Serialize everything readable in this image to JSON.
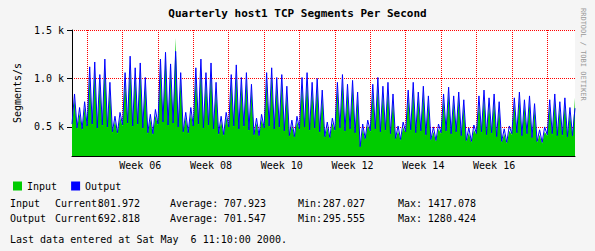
{
  "chart_data": {
    "type": "line",
    "title": "Quarterly host1 TCP Segments Per Second",
    "y_label": "Segments/s",
    "credit": "RRDTOOL / TOBI OETIKER",
    "categories": [
      null,
      null,
      null,
      null,
      null,
      null,
      null,
      null,
      null,
      null,
      null,
      null,
      null,
      null,
      null,
      null,
      null,
      null,
      null,
      null,
      null,
      null,
      null,
      null,
      null,
      null,
      null,
      "Week 06",
      null,
      null,
      null,
      null,
      null,
      null,
      null,
      null,
      null,
      null,
      null,
      null,
      null,
      null,
      null,
      null,
      null,
      null,
      null,
      null,
      null,
      null,
      null,
      null,
      null,
      null,
      null,
      "Week 08",
      null,
      null,
      null,
      null,
      null,
      null,
      null,
      null,
      null,
      null,
      null,
      null,
      null,
      null,
      null,
      null,
      null,
      null,
      null,
      null,
      null,
      null,
      null,
      null,
      null,
      null,
      null,
      "Week 10",
      null,
      null,
      null,
      null,
      null,
      null,
      null,
      null,
      null,
      null,
      null,
      null,
      null,
      null,
      null,
      null,
      null,
      null,
      null,
      null,
      null,
      null,
      null,
      null,
      null,
      null,
      null,
      "Week 12",
      null,
      null,
      null,
      null,
      null,
      null,
      null,
      null,
      null,
      null,
      null,
      null,
      null,
      null,
      null,
      null,
      null,
      null,
      null,
      null,
      null,
      null,
      null,
      null,
      null,
      null,
      null,
      "Week 14",
      null,
      null,
      null,
      null,
      null,
      null,
      null,
      null,
      null,
      null,
      null,
      null,
      null,
      null,
      null,
      null,
      null,
      null,
      null,
      null,
      null,
      null,
      null,
      null,
      null,
      null,
      null,
      "Week 16",
      null,
      null,
      null,
      null,
      null,
      null,
      null,
      null,
      null,
      null,
      null,
      null,
      null,
      null,
      null,
      null,
      null,
      null,
      null,
      null,
      null,
      null,
      null,
      null,
      null,
      null,
      null,
      null,
      null,
      null,
      null,
      null
    ],
    "series": [
      {
        "name": "Input",
        "type": "area",
        "color": "#00cc00",
        "values": [
          520,
          780,
          480,
          640,
          470,
          700,
          500,
          1050,
          520,
          1100,
          480,
          980,
          510,
          1150,
          490,
          900,
          440,
          560,
          430,
          600,
          510,
          1000,
          530,
          1180,
          500,
          1050,
          520,
          1100,
          480,
          950,
          430,
          580,
          420,
          620,
          520,
          1150,
          540,
          1250,
          510,
          1100,
          530,
          1417,
          490,
          1000,
          440,
          600,
          430,
          640,
          500,
          1050,
          520,
          1150,
          480,
          1000,
          510,
          1100,
          470,
          900,
          420,
          560,
          410,
          600,
          490,
          980,
          500,
          1080,
          470,
          950,
          500,
          1000,
          460,
          880,
          410,
          540,
          400,
          580,
          480,
          1000,
          500,
          1050,
          470,
          950,
          490,
          980,
          450,
          860,
          400,
          520,
          390,
          560,
          470,
          950,
          490,
          1000,
          460,
          900,
          480,
          940,
          440,
          820,
          390,
          500,
          380,
          540,
          460,
          900,
          480,
          980,
          450,
          880,
          470,
          920,
          430,
          800,
          287,
          480,
          370,
          520,
          450,
          880,
          470,
          950,
          440,
          860,
          460,
          900,
          420,
          780,
          370,
          460,
          360,
          500,
          440,
          820,
          460,
          900,
          430,
          800,
          450,
          860,
          410,
          760,
          360,
          450,
          350,
          480,
          430,
          780,
          450,
          850,
          420,
          760,
          440,
          800,
          400,
          720,
          350,
          440,
          340,
          470,
          420,
          760,
          440,
          820,
          410,
          740,
          430,
          780,
          390,
          700,
          340,
          430,
          330,
          460,
          420,
          740,
          430,
          800,
          400,
          720,
          420,
          760,
          380,
          680,
          340,
          420,
          330,
          450,
          410,
          720,
          420,
          780,
          400,
          700,
          410,
          740,
          390,
          650,
          400,
          802
        ]
      },
      {
        "name": "Output",
        "type": "line",
        "color": "#0000ff",
        "values": [
          530,
          840,
          490,
          700,
          480,
          760,
          510,
          1120,
          530,
          1170,
          490,
          1040,
          520,
          1200,
          500,
          960,
          450,
          610,
          440,
          650,
          520,
          1060,
          540,
          1230,
          510,
          1110,
          530,
          1160,
          490,
          1010,
          440,
          630,
          430,
          680,
          530,
          1200,
          550,
          1270,
          520,
          1150,
          540,
          1280,
          500,
          1060,
          450,
          650,
          440,
          700,
          510,
          1110,
          530,
          1200,
          490,
          1060,
          520,
          1160,
          480,
          960,
          430,
          610,
          420,
          650,
          500,
          1040,
          510,
          1140,
          480,
          1010,
          510,
          1060,
          470,
          940,
          420,
          590,
          410,
          630,
          490,
          1060,
          510,
          1110,
          480,
          1010,
          500,
          1040,
          460,
          920,
          410,
          570,
          400,
          610,
          480,
          1010,
          500,
          1060,
          470,
          960,
          490,
          1000,
          450,
          880,
          400,
          550,
          390,
          590,
          470,
          960,
          490,
          1040,
          460,
          940,
          480,
          980,
          440,
          860,
          296,
          530,
          380,
          570,
          460,
          940,
          480,
          1010,
          450,
          920,
          470,
          960,
          430,
          840,
          380,
          510,
          370,
          550,
          450,
          880,
          470,
          960,
          440,
          860,
          460,
          920,
          420,
          820,
          370,
          500,
          360,
          530,
          440,
          840,
          460,
          910,
          430,
          820,
          450,
          860,
          410,
          780,
          360,
          490,
          350,
          520,
          430,
          820,
          450,
          880,
          420,
          800,
          440,
          840,
          400,
          760,
          350,
          480,
          340,
          510,
          430,
          800,
          440,
          860,
          410,
          780,
          430,
          820,
          390,
          740,
          350,
          470,
          340,
          500,
          420,
          780,
          430,
          840,
          410,
          760,
          420,
          800,
          400,
          700,
          410,
          693
        ]
      }
    ],
    "ylim": [
      200,
      1500
    ],
    "yticks": [
      {
        "value": 500,
        "label": "0.5 k"
      },
      {
        "value": 1000,
        "label": "1.0 k"
      },
      {
        "value": 1500,
        "label": "1.5 k"
      }
    ],
    "grid": true,
    "legend": "lower left",
    "stat_labels": [
      "Current:",
      "Average:",
      "Min:",
      "Max:"
    ],
    "stats": [
      {
        "name": "Input",
        "values": [
          801.972,
          707.923,
          287.027,
          1417.078
        ]
      },
      {
        "name": "Output",
        "values": [
          692.818,
          701.547,
          295.555,
          1280.424
        ]
      }
    ],
    "last_update": "Last data entered at Sat May  6 11:10:00 2000."
  }
}
